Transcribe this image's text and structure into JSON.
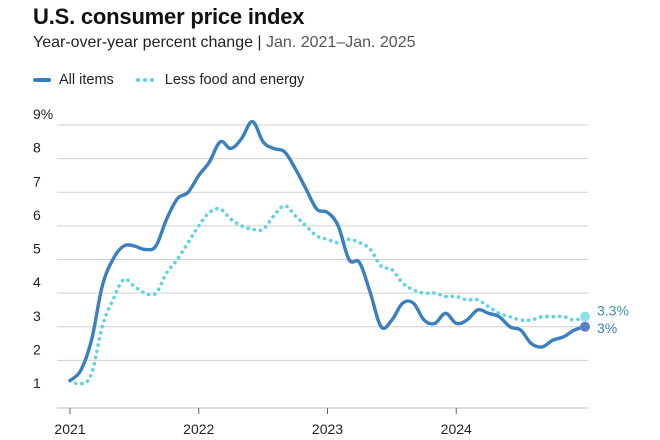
{
  "header": {
    "title": "U.S. consumer price index",
    "subtitle_main": "Year-over-year percent change",
    "subtitle_sep": " | ",
    "subtitle_range": "Jan. 2021–Jan. 2025"
  },
  "colors": {
    "all_items": "#3a7fbf",
    "core": "#5fd3e0",
    "all_items_label": "#3a7fbf",
    "core_label": "#3a8fa8",
    "grid": "#cfcfcf"
  },
  "chart_data": {
    "type": "line",
    "title": "U.S. consumer price index",
    "subtitle": "Year-over-year percent change | Jan. 2021–Jan. 2025",
    "xlabel": "",
    "ylabel": "",
    "ylim": [
      1,
      9
    ],
    "xlim": [
      2021.0,
      2025.0
    ],
    "y_ticks": [
      "1",
      "2",
      "3",
      "4",
      "5",
      "6",
      "7",
      "8",
      "9%"
    ],
    "y_tick_values": [
      1,
      2,
      3,
      4,
      5,
      6,
      7,
      8,
      9
    ],
    "x_ticks": [
      "2021",
      "2022",
      "2023",
      "2024"
    ],
    "x_tick_values": [
      2021,
      2022,
      2023,
      2024
    ],
    "grid": true,
    "legend": "top-left",
    "series": [
      {
        "name": "All items",
        "style": "solid",
        "x": [
          2021.0,
          2021.083,
          2021.167,
          2021.25,
          2021.333,
          2021.417,
          2021.5,
          2021.583,
          2021.667,
          2021.75,
          2021.833,
          2021.917,
          2022.0,
          2022.083,
          2022.167,
          2022.25,
          2022.333,
          2022.417,
          2022.5,
          2022.583,
          2022.667,
          2022.75,
          2022.833,
          2022.917,
          2023.0,
          2023.083,
          2023.167,
          2023.25,
          2023.333,
          2023.417,
          2023.5,
          2023.583,
          2023.667,
          2023.75,
          2023.833,
          2023.917,
          2024.0,
          2024.083,
          2024.167,
          2024.25,
          2024.333,
          2024.417,
          2024.5,
          2024.583,
          2024.667,
          2024.75,
          2024.833,
          2024.917,
          2025.0
        ],
        "values": [
          1.4,
          1.7,
          2.6,
          4.2,
          5.0,
          5.4,
          5.4,
          5.3,
          5.4,
          6.2,
          6.8,
          7.0,
          7.5,
          7.9,
          8.5,
          8.3,
          8.6,
          9.1,
          8.5,
          8.3,
          8.2,
          7.7,
          7.1,
          6.5,
          6.4,
          6.0,
          5.0,
          4.9,
          4.0,
          3.0,
          3.2,
          3.7,
          3.7,
          3.2,
          3.1,
          3.4,
          3.1,
          3.2,
          3.5,
          3.4,
          3.3,
          3.0,
          2.9,
          2.5,
          2.4,
          2.6,
          2.7,
          2.9,
          3.0
        ]
      },
      {
        "name": "Less food and energy",
        "style": "dotted",
        "x": [
          2021.0,
          2021.083,
          2021.167,
          2021.25,
          2021.333,
          2021.417,
          2021.5,
          2021.583,
          2021.667,
          2021.75,
          2021.833,
          2021.917,
          2022.0,
          2022.083,
          2022.167,
          2022.25,
          2022.333,
          2022.417,
          2022.5,
          2022.583,
          2022.667,
          2022.75,
          2022.833,
          2022.917,
          2023.0,
          2023.083,
          2023.167,
          2023.25,
          2023.333,
          2023.417,
          2023.5,
          2023.583,
          2023.667,
          2023.75,
          2023.833,
          2023.917,
          2024.0,
          2024.083,
          2024.167,
          2024.25,
          2024.333,
          2024.417,
          2024.5,
          2024.583,
          2024.667,
          2024.75,
          2024.833,
          2024.917,
          2025.0
        ],
        "values": [
          1.4,
          1.3,
          1.6,
          3.0,
          3.8,
          4.4,
          4.2,
          4.0,
          4.0,
          4.6,
          5.0,
          5.5,
          6.0,
          6.4,
          6.5,
          6.2,
          6.0,
          5.9,
          5.9,
          6.3,
          6.6,
          6.3,
          6.0,
          5.7,
          5.6,
          5.5,
          5.6,
          5.5,
          5.3,
          4.8,
          4.7,
          4.3,
          4.1,
          4.0,
          4.0,
          3.9,
          3.9,
          3.8,
          3.8,
          3.6,
          3.4,
          3.3,
          3.2,
          3.2,
          3.3,
          3.3,
          3.3,
          3.2,
          3.3
        ]
      }
    ],
    "end_labels": [
      {
        "series": "Less food and energy",
        "text": "3.3%"
      },
      {
        "series": "All items",
        "text": "3%"
      }
    ]
  }
}
